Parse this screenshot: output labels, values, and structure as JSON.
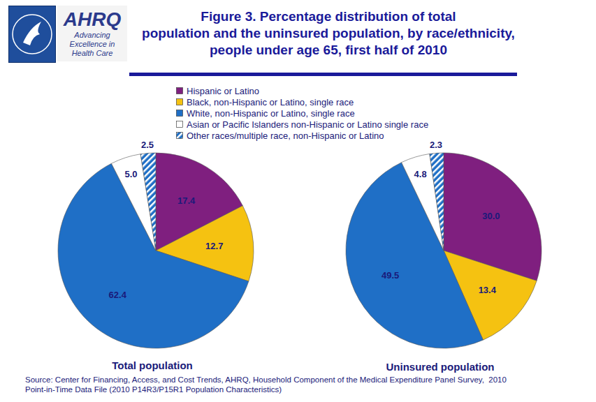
{
  "title": [
    "Figure 3. Percentage distribution of total",
    "population and the uninsured population, by race/ethnicity,",
    "people under age 65, first half of 2010"
  ],
  "logo": {
    "name": "AHRQ",
    "tagline": [
      "Advancing",
      "Excellence in",
      "Health Care"
    ]
  },
  "source": [
    "Source: Center for Financing, Access, and Cost Trends, AHRQ, Household Component of the Medical Expenditure Panel Survey,  2010",
    "Point-in-Time Data File (2010 P14R3/P15R1 Population Characteristics)"
  ],
  "chart_data": [
    {
      "type": "pie",
      "title": "Total population",
      "categories": [
        "Hispanic or Latino",
        "Black, non-Hispanic or Latino, single race",
        "White, non-Hispanic or Latino, single race",
        "Asian or Pacific Islanders non-Hispanic or Latino single race",
        "Other races/multiple race, non-Hispanic or Latino"
      ],
      "values": [
        17.4,
        12.7,
        62.4,
        5.0,
        2.5
      ],
      "value_labels": [
        "17.4",
        "12.7",
        "62.4",
        "5.0",
        "2.5"
      ],
      "colors": [
        "#7f1f7f",
        "#f5c211",
        "#1f6fc6",
        "#ffffff",
        "#1f6fc6"
      ],
      "data_labels": true,
      "legend": "top"
    },
    {
      "type": "pie",
      "title": "Uninsured population",
      "categories": [
        "Hispanic or Latino",
        "Black, non-Hispanic or Latino, single race",
        "White, non-Hispanic or Latino, single race",
        "Asian or Pacific Islanders non-Hispanic or Latino single race",
        "Other races/multiple race, non-Hispanic or Latino"
      ],
      "values": [
        30.0,
        13.4,
        49.5,
        4.8,
        2.3
      ],
      "value_labels": [
        "30.0",
        "13.4",
        "49.5",
        "4.8",
        "2.3"
      ],
      "colors": [
        "#7f1f7f",
        "#f5c211",
        "#1f6fc6",
        "#ffffff",
        "#1f6fc6"
      ],
      "data_labels": true
    }
  ]
}
